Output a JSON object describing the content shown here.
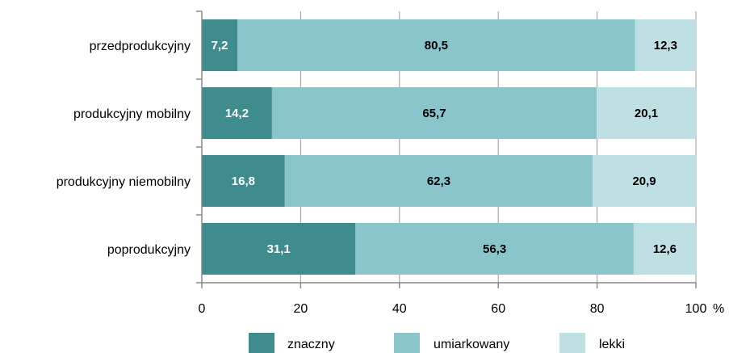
{
  "chart_data": {
    "type": "bar",
    "orientation": "horizontal",
    "stacked": true,
    "categories": [
      "przedprodukcyjny",
      "produkcyjny mobilny",
      "produkcyjny niemobilny",
      "poprodukcyjny"
    ],
    "series": [
      {
        "name": "znaczny",
        "values": [
          7.2,
          14.2,
          16.8,
          31.1
        ],
        "labels": [
          "7,2",
          "14,2",
          "16,8",
          "31,1"
        ],
        "color": "#3f8c8e",
        "label_color": "#ffffff"
      },
      {
        "name": "umiarkowany",
        "values": [
          80.5,
          65.7,
          62.3,
          56.3
        ],
        "labels": [
          "80,5",
          "65,7",
          "62,3",
          "56,3"
        ],
        "color": "#8ac5cb",
        "label_color": "#000000"
      },
      {
        "name": "lekki",
        "values": [
          12.3,
          20.1,
          20.9,
          12.6
        ],
        "labels": [
          "12,3",
          "20,1",
          "20,9",
          "12,6"
        ],
        "color": "#bfe0e3",
        "label_color": "#000000"
      }
    ],
    "x_ticks": [
      "0",
      "20",
      "40",
      "60",
      "80",
      "100"
    ],
    "x_unit": "%",
    "xlim": [
      0,
      100
    ],
    "grid": "vertical",
    "legend_position": "bottom"
  }
}
